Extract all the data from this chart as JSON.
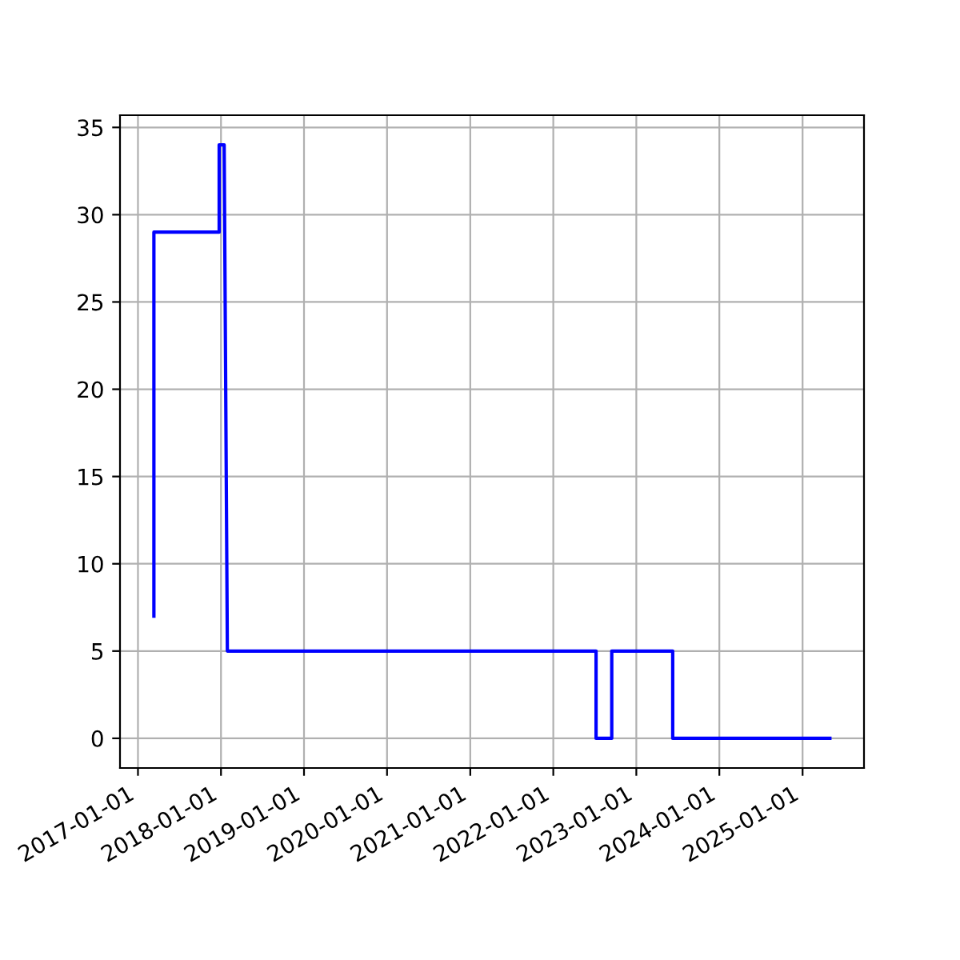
{
  "chart_data": {
    "type": "line",
    "x": [
      "2017-03-12",
      "2017-03-12",
      "2017-12-24",
      "2017-12-24",
      "2018-01-15",
      "2018-01-29",
      "2022-07-08",
      "2022-07-08",
      "2022-09-15",
      "2022-09-15",
      "2023-06-10",
      "2023-06-10",
      "2025-05-01"
    ],
    "series": [
      {
        "color": "#0000ff",
        "values": [
          7,
          29,
          29,
          34,
          34,
          5,
          5,
          0,
          0,
          5,
          5,
          0,
          0
        ]
      }
    ],
    "xlim": [
      "2016-10-14",
      "2025-09-28"
    ],
    "xticks": [
      "2017-01-01",
      "2018-01-01",
      "2019-01-01",
      "2020-01-01",
      "2021-01-01",
      "2022-01-01",
      "2023-01-01",
      "2024-01-01",
      "2025-01-01"
    ],
    "ylim": [
      -1.7,
      35.7
    ],
    "yticks": [
      0,
      5,
      10,
      15,
      20,
      25,
      30,
      35
    ],
    "grid": true
  }
}
